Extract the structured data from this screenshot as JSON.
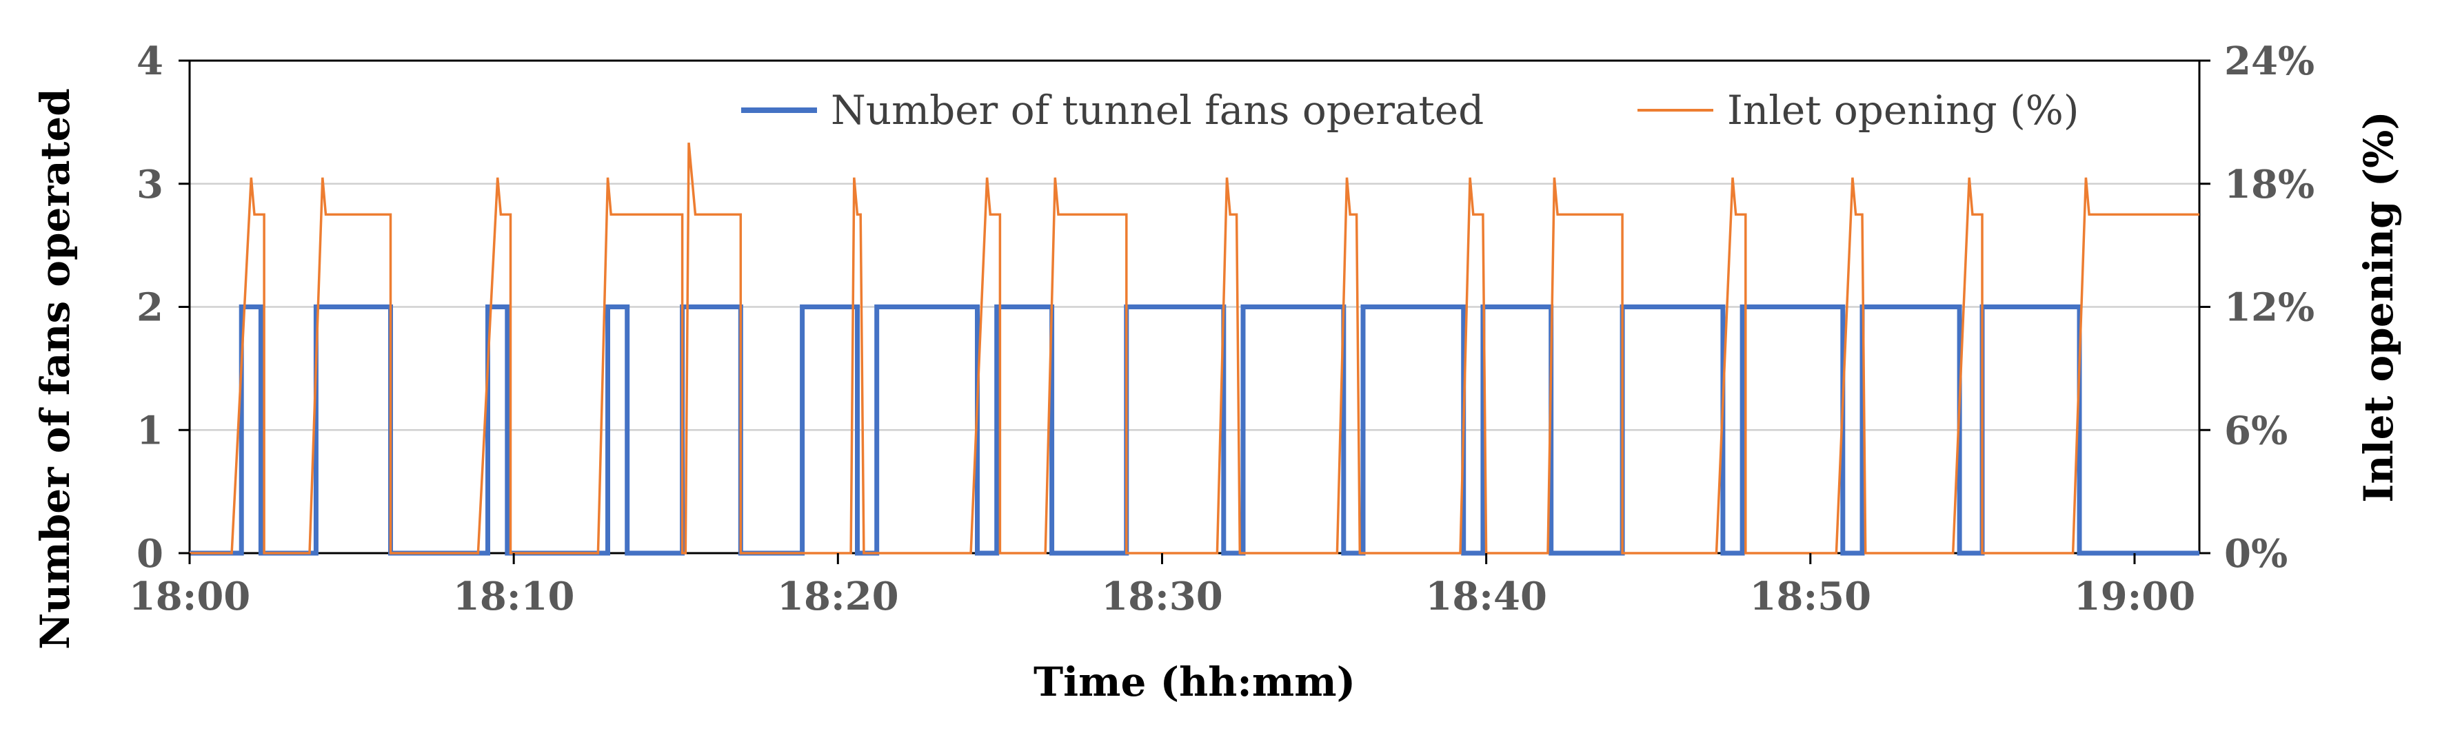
{
  "chart_data": {
    "type": "line",
    "xlabel": "Time (hh:mm)",
    "ylabel": "Number of fans operated",
    "y2label": "Inlet opening (%)",
    "x_range_minutes": [
      0,
      62
    ],
    "ylim": [
      0,
      4
    ],
    "y2lim": [
      0,
      24
    ],
    "grid": true,
    "legend_position": "top",
    "x_ticks": [
      {
        "value": 0,
        "label": "18:00"
      },
      {
        "value": 10,
        "label": "18:10"
      },
      {
        "value": 20,
        "label": "18:20"
      },
      {
        "value": 30,
        "label": "18:30"
      },
      {
        "value": 40,
        "label": "18:40"
      },
      {
        "value": 50,
        "label": "18:50"
      },
      {
        "value": 60,
        "label": "19:00"
      }
    ],
    "y_ticks": [
      "0",
      "1",
      "2",
      "3",
      "4"
    ],
    "y2_ticks": [
      "0%",
      "6%",
      "12%",
      "18%",
      "24%"
    ],
    "series": [
      {
        "name": "Number of tunnel fans operated",
        "axis": "left",
        "color": "#4472C4",
        "type": "step",
        "x": [
          0,
          1.6,
          1.6,
          2.2,
          2.2,
          3.9,
          3.9,
          6.2,
          6.2,
          9.2,
          9.2,
          9.8,
          9.8,
          12.9,
          12.9,
          13.5,
          13.5,
          15.2,
          15.2,
          17.0,
          17.0,
          18.9,
          18.9,
          20.6,
          20.6,
          21.2,
          21.2,
          24.3,
          24.3,
          24.9,
          24.9,
          26.6,
          26.6,
          28.9,
          28.9,
          31.9,
          31.9,
          32.5,
          32.5,
          35.6,
          35.6,
          36.2,
          36.2,
          39.3,
          39.3,
          39.9,
          39.9,
          42.0,
          42.0,
          44.2,
          44.2,
          47.3,
          47.3,
          47.9,
          47.9,
          51.0,
          51.0,
          51.6,
          51.6,
          54.6,
          54.6,
          55.3,
          55.3,
          58.3,
          58.3,
          62.0
        ],
        "y": [
          0,
          0,
          2,
          2,
          0,
          0,
          2,
          2,
          0,
          0,
          2,
          2,
          0,
          0,
          2,
          2,
          0,
          0,
          2,
          2,
          0,
          0,
          2,
          2,
          0,
          0,
          2,
          2,
          0,
          0,
          2,
          2,
          0,
          0,
          2,
          2,
          0,
          0,
          2,
          2,
          0,
          0,
          2,
          2,
          0,
          0,
          2,
          2,
          0,
          0,
          2,
          2,
          0,
          0,
          2,
          2,
          0,
          0,
          2,
          2,
          0,
          0,
          2,
          2,
          0,
          0
        ]
      },
      {
        "name": "Inlet opening (%)",
        "axis": "right",
        "color": "#ED7D31",
        "type": "line",
        "x": [
          0,
          1.3,
          1.9,
          2.0,
          2.3,
          2.3,
          3.7,
          4.1,
          4.2,
          6.2,
          6.2,
          8.9,
          9.5,
          9.6,
          9.9,
          9.9,
          12.6,
          12.9,
          13.0,
          15.2,
          15.2,
          15.3,
          15.4,
          15.6,
          15.8,
          17.0,
          17.0,
          20.4,
          20.5,
          20.6,
          20.7,
          20.8,
          24.1,
          24.6,
          24.7,
          25.0,
          25.0,
          26.4,
          26.7,
          26.8,
          28.9,
          28.9,
          31.7,
          32.0,
          32.1,
          32.3,
          32.4,
          35.4,
          35.7,
          35.8,
          36.0,
          36.1,
          39.2,
          39.5,
          39.6,
          39.9,
          40.0,
          41.9,
          42.1,
          42.2,
          44.2,
          44.2,
          47.1,
          47.6,
          47.7,
          48.0,
          48.0,
          50.8,
          51.3,
          51.4,
          51.6,
          51.7,
          54.4,
          54.9,
          55.0,
          55.3,
          55.3,
          58.1,
          58.5,
          58.6,
          62.0
        ],
        "y": [
          0,
          0,
          18.3,
          16.5,
          16.5,
          0,
          0,
          18.3,
          16.5,
          16.5,
          0,
          0,
          18.3,
          16.5,
          16.5,
          0,
          0,
          18.3,
          16.5,
          16.5,
          0,
          0,
          20.0,
          16.5,
          16.5,
          16.5,
          0,
          0,
          18.3,
          16.5,
          16.5,
          0,
          0,
          18.3,
          16.5,
          16.5,
          0,
          0,
          18.3,
          16.5,
          16.5,
          0,
          0,
          18.3,
          16.5,
          16.5,
          0,
          0,
          18.3,
          16.5,
          16.5,
          0,
          0,
          18.3,
          16.5,
          16.5,
          0,
          0,
          18.3,
          16.5,
          16.5,
          0,
          0,
          18.3,
          16.5,
          16.5,
          0,
          0,
          18.3,
          16.5,
          16.5,
          0,
          0,
          18.3,
          16.5,
          16.5,
          0,
          0,
          18.3,
          16.5,
          16.5
        ]
      }
    ]
  }
}
